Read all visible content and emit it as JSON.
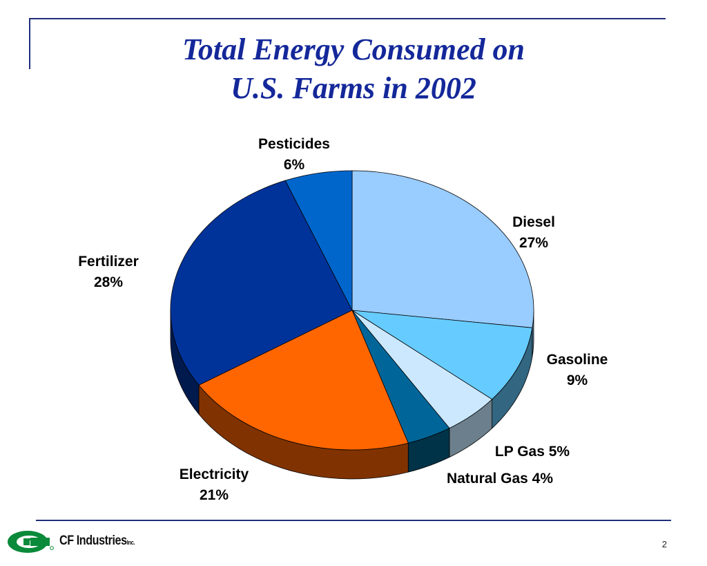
{
  "slide": {
    "title_lines": [
      "Total Energy Consumed on",
      "U.S. Farms in 2002"
    ],
    "page_number": "2"
  },
  "logo": {
    "brand_name": "CF Industries",
    "suffix": "Inc.",
    "mark_color": "#0a8a3a",
    "icon": "cf-logo-icon"
  },
  "chart_data": {
    "type": "pie",
    "title": "Total Energy Consumed on U.S. Farms in 2002",
    "style": "3d",
    "slices": [
      {
        "name": "Diesel",
        "value": 27,
        "label": "Diesel",
        "pct_text": "27%",
        "color": "#99ccff",
        "side_color": "#5e85a8"
      },
      {
        "name": "Gasoline",
        "value": 9,
        "label": "Gasoline",
        "pct_text": "9%",
        "color": "#66ccff",
        "side_color": "#336680"
      },
      {
        "name": "LP Gas",
        "value": 5,
        "label": "LP Gas  5%",
        "pct_text": "",
        "color": "#cce8ff",
        "side_color": "#6b7f8c"
      },
      {
        "name": "Natural Gas",
        "value": 4,
        "label": "Natural Gas 4%",
        "pct_text": "",
        "color": "#006699",
        "side_color": "#003347"
      },
      {
        "name": "Electricity",
        "value": 21,
        "label": "Electricity",
        "pct_text": "21%",
        "color": "#ff6600",
        "side_color": "#803300"
      },
      {
        "name": "Fertilizer",
        "value": 28,
        "label": "Fertilizer",
        "pct_text": "28%",
        "color": "#003399",
        "side_color": "#001a4d"
      },
      {
        "name": "Pesticides",
        "value": 6,
        "label": "Pesticides",
        "pct_text": "6%",
        "color": "#0066cc",
        "side_color": "#003366"
      }
    ]
  }
}
